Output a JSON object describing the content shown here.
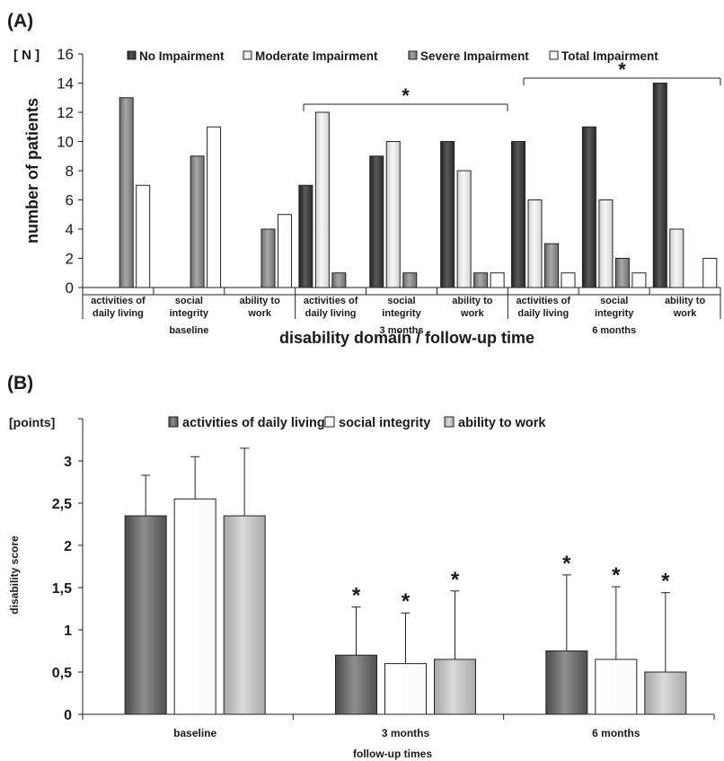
{
  "chart_data": [
    {
      "panel_label": "(A)",
      "type": "bar",
      "unit_label": "[ N ]",
      "ylabel": "number of patients",
      "xlabel": "disability domain / follow-up time",
      "ylim": [
        0,
        16
      ],
      "yticks": [
        0,
        2,
        4,
        6,
        8,
        10,
        12,
        14,
        16
      ],
      "categories": [
        "activities of daily living",
        "social integrity",
        "ability to work",
        "activities of daily living",
        "social integrity",
        "ability to work",
        "activities of daily living",
        "social integrity",
        "ability to work"
      ],
      "category_lines": [
        [
          "activities of",
          "daily living"
        ],
        [
          "social",
          "integrity"
        ],
        [
          "ability to",
          "work"
        ],
        [
          "activities of",
          "daily living"
        ],
        [
          "social",
          "integrity"
        ],
        [
          "ability to",
          "work"
        ],
        [
          "activities of",
          "daily living"
        ],
        [
          "social",
          "integrity"
        ],
        [
          "ability to",
          "work"
        ]
      ],
      "groups": [
        "baseline",
        "3 months",
        "6 months"
      ],
      "legend_position": "top",
      "series": [
        {
          "name": "No Impairment",
          "color": "#3c3c3c",
          "values": [
            0,
            0,
            0,
            7,
            9,
            10,
            10,
            11,
            14
          ]
        },
        {
          "name": "Moderate Impairment",
          "color": "#e4e4e4",
          "values": [
            0,
            0,
            0,
            12,
            10,
            8,
            6,
            6,
            4
          ]
        },
        {
          "name": "Severe Impairment",
          "color": "#8a8a8a",
          "values": [
            13,
            9,
            4,
            1,
            1,
            1,
            3,
            2,
            0
          ]
        },
        {
          "name": "Total Impairment",
          "color": "#ffffff",
          "values": [
            7,
            11,
            5,
            0,
            0,
            1,
            1,
            1,
            2
          ]
        }
      ],
      "annotations": [
        {
          "text": "*",
          "group": "3 months"
        },
        {
          "text": "*",
          "group": "6 months"
        }
      ]
    },
    {
      "panel_label": "(B)",
      "type": "bar",
      "unit_label": "[points]",
      "ylabel": "disability score",
      "xlabel": "follow-up times",
      "ylim": [
        0,
        3.5
      ],
      "yticks": [
        "0",
        "0,5",
        "1",
        "1,5",
        "2",
        "2,5",
        "3"
      ],
      "ytick_values": [
        0,
        0.5,
        1,
        1.5,
        2,
        2.5,
        3
      ],
      "categories": [
        "baseline",
        "3 months",
        "6 months"
      ],
      "legend_position": "top",
      "series": [
        {
          "name": "activities of daily living",
          "color": "#6f6f6f",
          "values": [
            2.35,
            0.7,
            0.75
          ],
          "error": [
            0.48,
            0.57,
            0.9
          ],
          "significant": [
            false,
            true,
            true
          ]
        },
        {
          "name": "social integrity",
          "color": "#ffffff",
          "values": [
            2.55,
            0.6,
            0.65
          ],
          "error": [
            0.5,
            0.6,
            0.86
          ],
          "significant": [
            false,
            true,
            true
          ]
        },
        {
          "name": "ability to work",
          "color": "#c4c4c4",
          "values": [
            2.35,
            0.65,
            0.5
          ],
          "error": [
            0.8,
            0.81,
            0.94
          ],
          "significant": [
            false,
            true,
            true
          ]
        }
      ],
      "significance_marker": "*"
    }
  ]
}
